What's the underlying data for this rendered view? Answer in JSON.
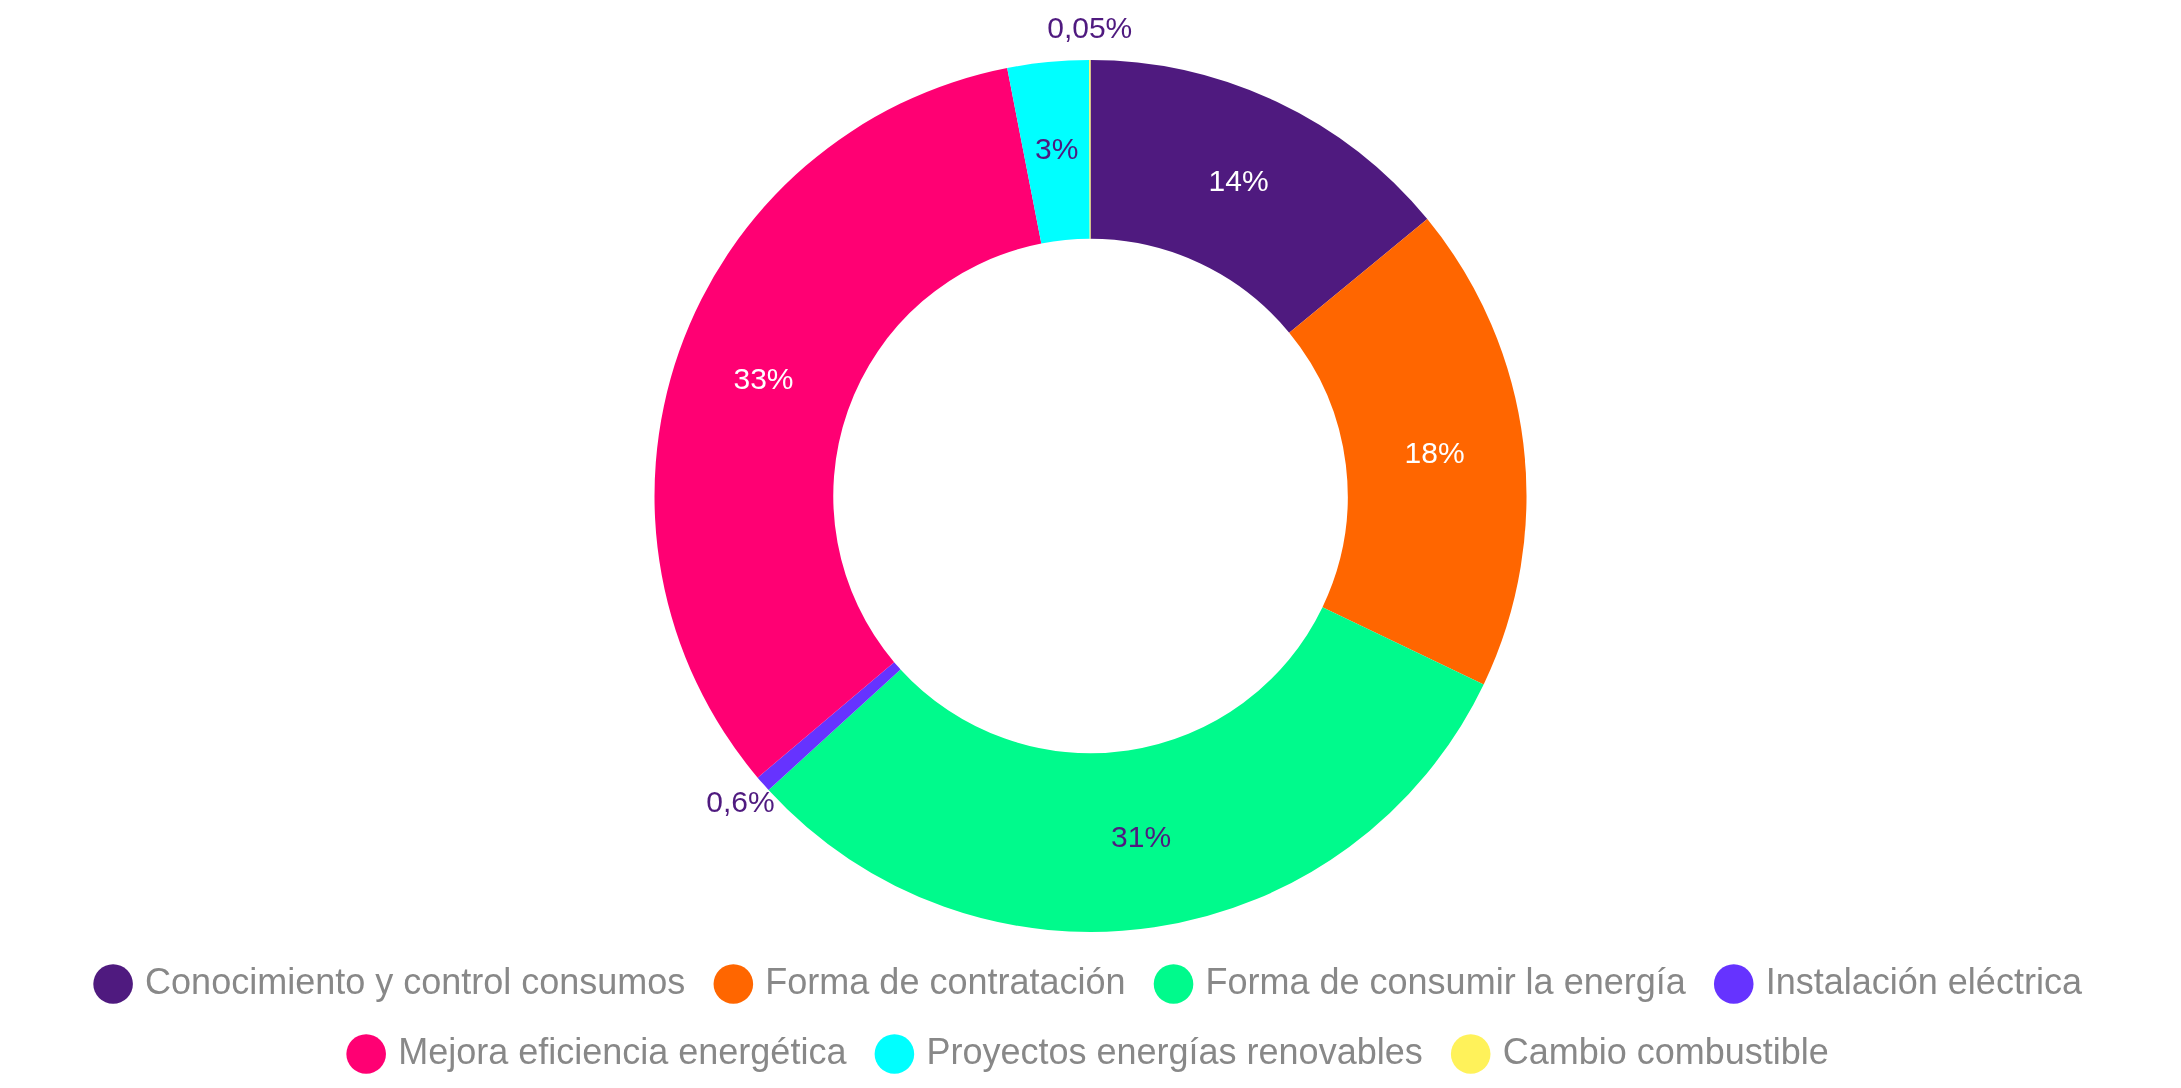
{
  "chart_data": {
    "type": "donut",
    "categories": [
      "Conocimiento y control consumos",
      "Forma de contratación",
      "Forma de consumir la energía",
      "Instalación eléctrica",
      "Mejora eficiencia energética",
      "Proyectos energías renovables",
      "Cambio combustible"
    ],
    "values": [
      14,
      18,
      31,
      0.6,
      33,
      3,
      0.05
    ],
    "colors": [
      "#4f1a7f",
      "#ff6600",
      "#00fa8c",
      "#6633ff",
      "#ff0073",
      "#00ffff",
      "#fff25a"
    ],
    "value_labels": [
      "14%",
      "18%",
      "31%",
      "0,6%",
      "33%",
      "3%",
      "0,05%"
    ],
    "legend": "bottom"
  }
}
